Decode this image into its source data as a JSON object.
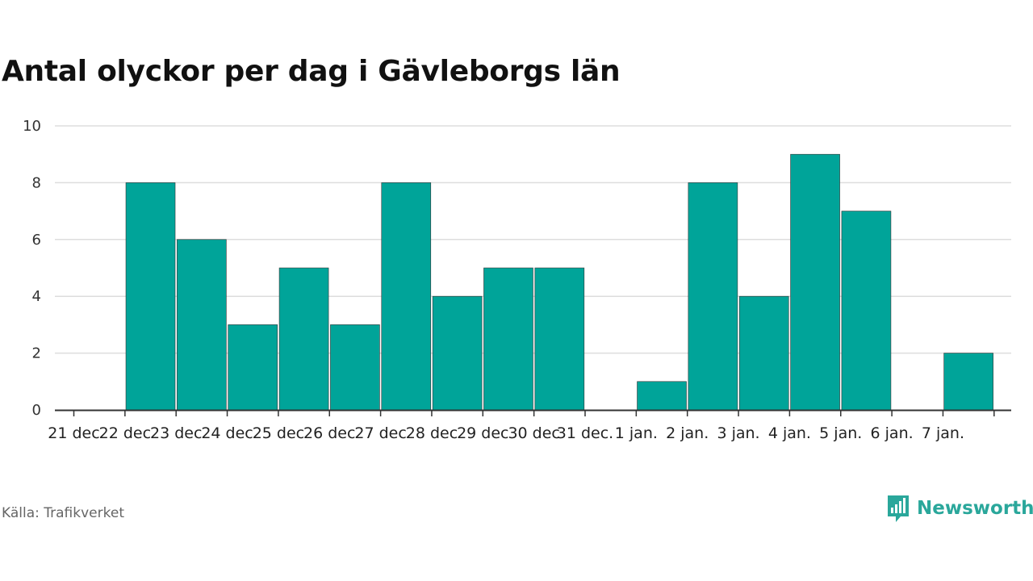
{
  "chart_data": {
    "type": "bar",
    "title": "Antal olyckor per dag i Gävleborgs län",
    "xlabel": "",
    "ylabel": "",
    "categories": [
      "21 dec",
      "22 dec",
      "23 dec",
      "24 dec",
      "25 dec",
      "26 dec",
      "27 dec",
      "28 dec",
      "29 dec",
      "30 dec",
      "31 dec.",
      "1 jan.",
      "2 jan.",
      "3 jan.",
      "4 jan.",
      "5 jan.",
      "6 jan.",
      "7 jan."
    ],
    "values": [
      0,
      8,
      6,
      3,
      5,
      3,
      8,
      4,
      5,
      5,
      0,
      1,
      8,
      4,
      9,
      7,
      0,
      2
    ],
    "ylim": [
      0,
      10
    ],
    "yticks": [
      0,
      2,
      4,
      6,
      8,
      10
    ],
    "grid": true,
    "colors": {
      "bar": "#00a499",
      "grid": "#dddddd",
      "axis": "#333333"
    }
  },
  "footer": {
    "source": "Källa: Trafikverket",
    "brand": "Newsworthy",
    "brand_color": "#2aa79b",
    "brand_icon": "newsworthy-logo-icon"
  }
}
